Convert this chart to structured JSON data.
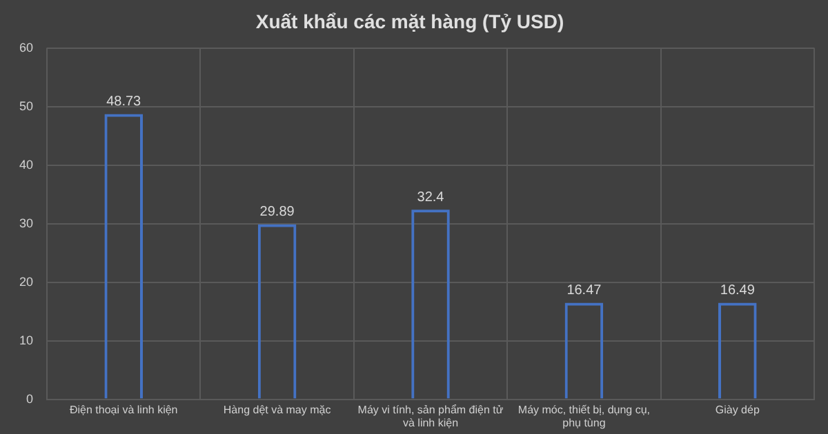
{
  "chart_data": {
    "type": "bar",
    "title": "Xuất khẩu các mặt hàng (Tỷ USD)",
    "categories": [
      "Điện thoại và linh kiện",
      "Hàng dệt và may mặc",
      "Máy vi tính, sản phẩm điện tử và linh kiện",
      "Máy móc, thiết bị, dụng cụ, phụ tùng",
      "Giày dép"
    ],
    "values": [
      48.73,
      29.89,
      32.4,
      16.47,
      16.49
    ],
    "color": "#4472c4",
    "ylim": [
      0,
      60
    ],
    "yticks": [
      0,
      10,
      20,
      30,
      40,
      50,
      60
    ],
    "grid": true,
    "data_labels": true
  }
}
